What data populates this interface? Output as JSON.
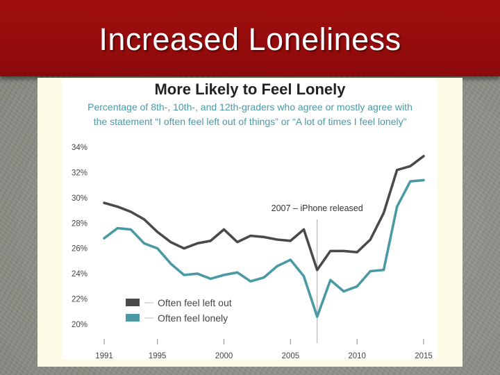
{
  "slide": {
    "title": "Increased Loneliness"
  },
  "chart_data": {
    "type": "line",
    "title": "More Likely to Feel Lonely",
    "subtitle_lines": [
      "Percentage of 8th-, 10th-, and 12th-graders who agree or mostly agree with",
      "the statement “I often feel left out of things” or “A lot of times I feel lonely”"
    ],
    "xlabel": "",
    "ylabel": "",
    "x": [
      1991,
      1992,
      1993,
      1994,
      1995,
      1996,
      1997,
      1998,
      1999,
      2000,
      2001,
      2002,
      2003,
      2004,
      2005,
      2006,
      2007,
      2008,
      2009,
      2010,
      2011,
      2012,
      2013,
      2014,
      2015
    ],
    "x_ticks": [
      1991,
      1995,
      2000,
      2005,
      2010,
      2015
    ],
    "x_tick_labels": [
      "1991",
      "1995",
      "2000",
      "2005",
      "2010",
      "2015"
    ],
    "xlim": [
      1991,
      2015
    ],
    "y_ticks": [
      20,
      22,
      24,
      26,
      28,
      30,
      32,
      34
    ],
    "y_tick_labels": [
      "20%",
      "22%",
      "24%",
      "26%",
      "28%",
      "30%",
      "32%",
      "34%"
    ],
    "ylim": [
      20,
      34
    ],
    "grid": false,
    "legend_position": "bottom-left",
    "series": [
      {
        "name": "Often feel left out",
        "color": "#4a4a4a",
        "values": [
          29.6,
          29.3,
          28.9,
          28.3,
          27.3,
          26.5,
          26.0,
          26.4,
          26.6,
          27.5,
          26.5,
          27.0,
          26.9,
          26.7,
          26.6,
          27.5,
          24.3,
          25.8,
          25.8,
          25.7,
          26.7,
          28.8,
          32.2,
          32.5,
          33.3
        ]
      },
      {
        "name": "Often feel lonely",
        "color": "#4a9aa5",
        "values": [
          26.8,
          27.6,
          27.5,
          26.4,
          26.0,
          24.8,
          23.9,
          24.0,
          23.6,
          23.9,
          24.1,
          23.4,
          23.7,
          24.6,
          25.1,
          23.8,
          20.6,
          23.5,
          22.6,
          23.0,
          24.2,
          24.3,
          29.3,
          31.3,
          31.4
        ]
      }
    ],
    "annotations": [
      {
        "x": 2007,
        "text": "2007 – iPhone released"
      }
    ]
  }
}
